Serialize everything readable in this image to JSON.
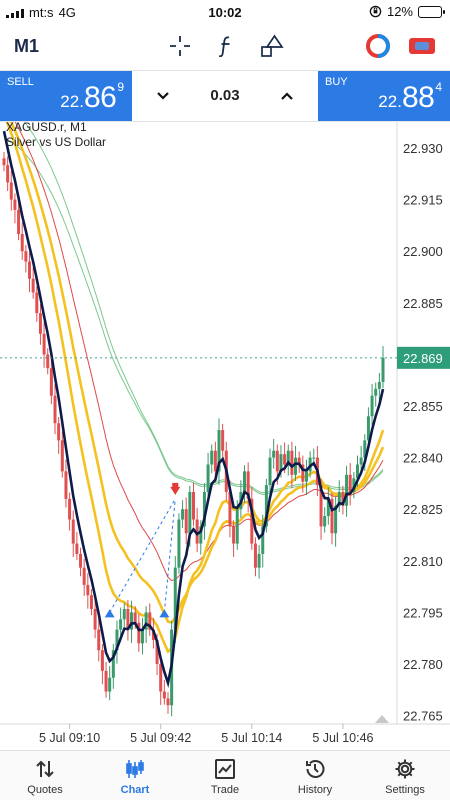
{
  "status_bar": {
    "carrier": "mt:s",
    "network": "4G",
    "time": "10:02",
    "battery": "12%",
    "battery_level": 0.12
  },
  "toolbar": {
    "timeframe": "M1",
    "icons": [
      "crosshair-icon",
      "function-icon",
      "objects-icon",
      "account-icon",
      "trade-icon"
    ]
  },
  "trade": {
    "sell_label": "SELL",
    "sell_price_small": "22.",
    "sell_price_big": "86",
    "sell_price_sup": "9",
    "buy_label": "BUY",
    "buy_price_small": "22.",
    "buy_price_big": "88",
    "buy_price_sup": "4",
    "volume": "0.03",
    "accent": "#2c7be5"
  },
  "chart": {
    "symbol": "XAGUSD.r",
    "timeframe": "M1",
    "description": "Silver vs US Dollar",
    "current_price_label": "22.869",
    "colors": {
      "bull": "#3a9a6c",
      "bear": "#e05050",
      "ma_dark": "#0d1b4a",
      "ma_yellow": "#f5c120",
      "ma_red": "#e04848",
      "ma_green": "#7cc88f"
    }
  },
  "chart_data": {
    "type": "candlestick",
    "title": "XAGUSD.r, M1",
    "subtitle": "Silver vs US Dollar",
    "y_ticks": [
      "22.930",
      "22.915",
      "22.900",
      "22.885",
      "22.869",
      "22.855",
      "22.840",
      "22.825",
      "22.810",
      "22.795",
      "22.780",
      "22.765"
    ],
    "x_ticks": [
      "5 Jul 09:10",
      "5 Jul 09:42",
      "5 Jul 10:14",
      "5 Jul 10:46"
    ],
    "ylim": [
      22.755,
      22.94
    ],
    "grid": false,
    "current_price": 22.869,
    "candles_close": [
      22.925,
      22.92,
      22.915,
      22.912,
      22.905,
      22.9,
      22.897,
      22.892,
      22.888,
      22.882,
      22.876,
      22.87,
      22.866,
      22.858,
      22.85,
      22.845,
      22.836,
      22.828,
      22.822,
      22.815,
      22.812,
      22.808,
      22.803,
      22.8,
      22.796,
      22.79,
      22.784,
      22.778,
      22.772,
      22.776,
      22.784,
      22.79,
      22.793,
      22.796,
      22.79,
      22.795,
      22.792,
      22.786,
      22.79,
      22.795,
      22.79,
      22.787,
      22.78,
      22.772,
      22.77,
      22.768,
      22.79,
      22.808,
      22.822,
      22.825,
      22.818,
      22.83,
      22.822,
      22.815,
      22.82,
      22.83,
      22.838,
      22.842,
      22.836,
      22.848,
      22.842,
      22.83,
      22.82,
      22.815,
      22.825,
      22.83,
      22.836,
      22.828,
      22.815,
      22.808,
      22.812,
      22.82,
      22.832,
      22.84,
      22.842,
      22.836,
      22.841,
      22.838,
      22.842,
      22.835,
      22.84,
      22.838,
      22.833,
      22.836,
      22.84,
      22.84,
      22.832,
      22.82,
      22.823,
      22.828,
      22.818,
      22.826,
      22.83,
      22.826,
      22.835,
      22.83,
      22.834,
      22.838,
      22.84,
      22.845,
      22.852,
      22.858,
      22.86,
      22.862,
      22.869
    ]
  }
}
